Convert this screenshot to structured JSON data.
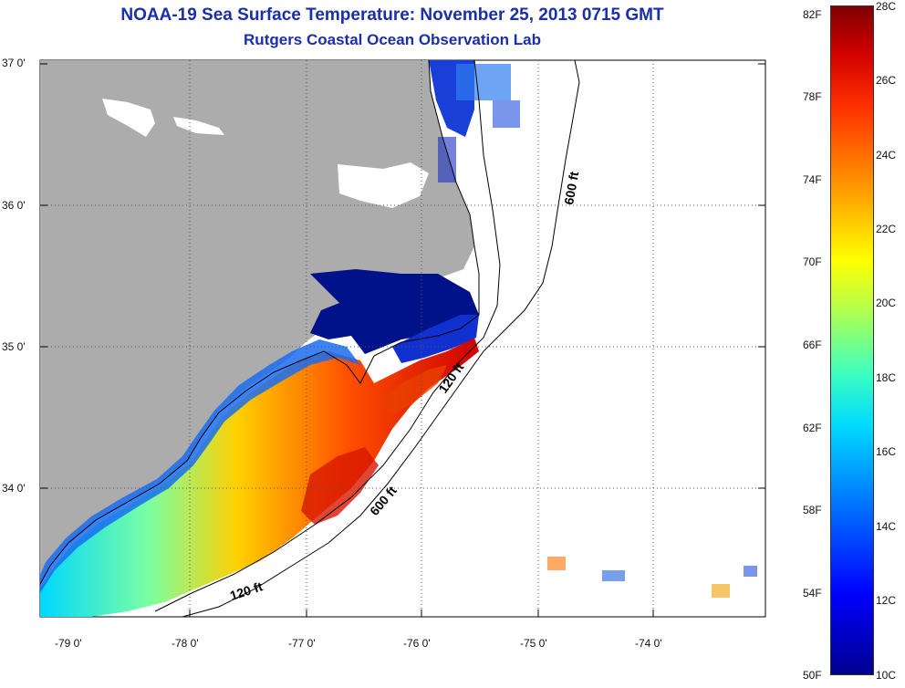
{
  "header": {
    "title": "NOAA-19 Sea Surface Temperature:  November 25, 2013 0715 GMT",
    "subtitle": "Rutgers Coastal Ocean Observation Lab"
  },
  "map": {
    "lat_labels": [
      "37 0'",
      "36 0'",
      "35 0'",
      "34 0'"
    ],
    "lon_labels": [
      "-79 0'",
      "-78 0'",
      "-77 0'",
      "-76 0'",
      "-75 0'",
      "-74 0'"
    ],
    "contour_labels": [
      "600 ft",
      "120 ft",
      "600 ft",
      "120 ft"
    ],
    "colors": {
      "land": "#acacac",
      "no_data": "#ffffff",
      "cold": "#00008f",
      "warm": "#d00000"
    }
  },
  "colorbar": {
    "fahrenheit_labels": [
      "82F",
      "78F",
      "74F",
      "70F",
      "66F",
      "62F",
      "58F",
      "54F",
      "50F"
    ],
    "celsius_labels": [
      "28C",
      "26C",
      "24C",
      "22C",
      "20C",
      "18C",
      "16C",
      "14C",
      "12C",
      "10C"
    ]
  }
}
